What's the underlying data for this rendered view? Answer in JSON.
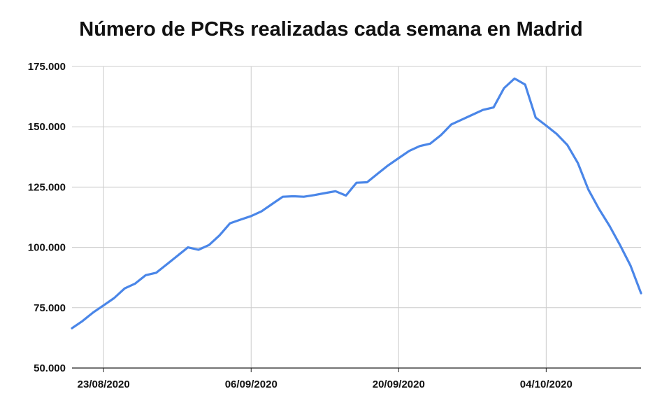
{
  "chart_data": {
    "type": "line",
    "title": "Número de PCRs realizadas cada semana en Madrid",
    "xlabel": "",
    "ylabel": "",
    "x_ticks": [
      {
        "label": "23/08/2020",
        "day": 3
      },
      {
        "label": "06/09/2020",
        "day": 17
      },
      {
        "label": "20/09/2020",
        "day": 31
      },
      {
        "label": "04/10/2020",
        "day": 45
      }
    ],
    "y_ticks": [
      {
        "label": "50.000",
        "value": 50000
      },
      {
        "label": "75.000",
        "value": 75000
      },
      {
        "label": "100.000",
        "value": 100000
      },
      {
        "label": "125.000",
        "value": 125000
      },
      {
        "label": "150.000",
        "value": 150000
      },
      {
        "label": "175.000",
        "value": 175000
      }
    ],
    "xlim": [
      "20/08/2020",
      "13/10/2020"
    ],
    "ylim": [
      50000,
      175000
    ],
    "grid": true,
    "legend": "none",
    "colors": {
      "line": "#4a86e8",
      "grid": "#cccccc",
      "axis": "#222222"
    },
    "series": [
      {
        "x": [
          "20/08/2020",
          "21/08/2020",
          "22/08/2020",
          "23/08/2020",
          "24/08/2020",
          "25/08/2020",
          "26/08/2020",
          "27/08/2020",
          "28/08/2020",
          "29/08/2020",
          "30/08/2020",
          "31/08/2020",
          "01/09/2020",
          "02/09/2020",
          "03/09/2020",
          "04/09/2020",
          "05/09/2020",
          "06/09/2020",
          "07/09/2020",
          "08/09/2020",
          "09/09/2020",
          "10/09/2020",
          "11/09/2020",
          "12/09/2020",
          "13/09/2020",
          "14/09/2020",
          "15/09/2020",
          "16/09/2020",
          "17/09/2020",
          "18/09/2020",
          "19/09/2020",
          "20/09/2020",
          "21/09/2020",
          "22/09/2020",
          "23/09/2020",
          "24/09/2020",
          "25/09/2020",
          "26/09/2020",
          "27/09/2020",
          "28/09/2020",
          "29/09/2020",
          "30/09/2020",
          "01/10/2020",
          "02/10/2020",
          "03/10/2020",
          "04/10/2020",
          "05/10/2020",
          "06/10/2020",
          "07/10/2020",
          "08/10/2020",
          "09/10/2020",
          "10/10/2020",
          "11/10/2020",
          "12/10/2020",
          "13/10/2020"
        ],
        "values": [
          66500,
          69500,
          73000,
          76000,
          79000,
          83000,
          85000,
          88500,
          89500,
          93000,
          96500,
          100000,
          99000,
          101000,
          105000,
          110000,
          111500,
          113000,
          115000,
          118000,
          121000,
          121200,
          121000,
          121700,
          122500,
          123300,
          121500,
          126800,
          127000,
          130500,
          134000,
          137000,
          140000,
          142000,
          143000,
          146500,
          151000,
          153000,
          155000,
          157000,
          158000,
          166000,
          170000,
          167500,
          153800,
          150500,
          147000,
          142500,
          135000,
          124000,
          116000,
          109000,
          101000,
          92500,
          81000
        ]
      }
    ]
  }
}
